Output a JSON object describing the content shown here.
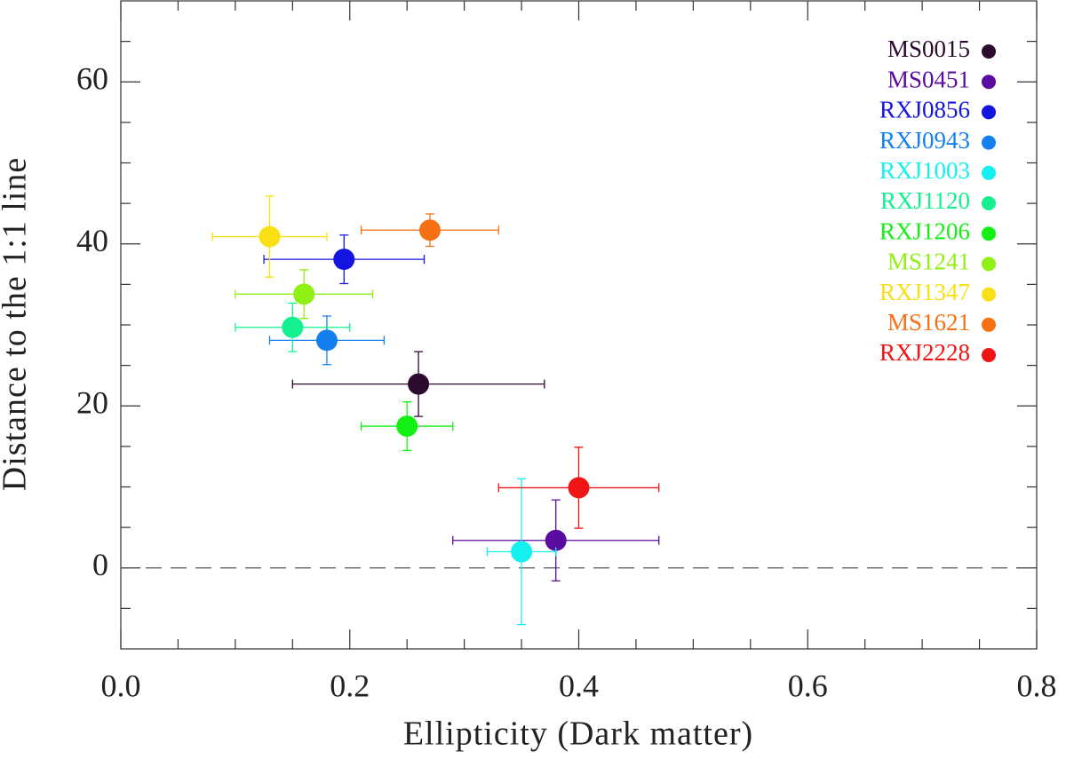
{
  "chart_data": {
    "type": "scatter",
    "xlabel": "Ellipticity (Dark matter)",
    "ylabel": "Distance to the 1:1 line",
    "xlim": [
      0,
      0.8
    ],
    "ylim": [
      -10,
      70
    ],
    "xticks": [
      {
        "value": 0,
        "label": "0.0"
      },
      0.2,
      0.4,
      0.6,
      0.8
    ],
    "yticks": [
      0,
      20,
      40,
      60
    ],
    "xminorticks": [
      0.05,
      0.1,
      0.15,
      0.25,
      0.3,
      0.35,
      0.45,
      0.5,
      0.55,
      0.65,
      0.7,
      0.75
    ],
    "yminorticks": [
      -5,
      5,
      10,
      15,
      25,
      30,
      35,
      45,
      50,
      55,
      65
    ],
    "reference_line": 0,
    "legend": "upper right",
    "series": [
      {
        "name": "MS0015",
        "color": "#2b0a2e",
        "x": [
          0.26
        ],
        "values": [
          22.7
        ],
        "xerr": [
          0.11
        ],
        "yerr": [
          4
        ]
      },
      {
        "name": "MS0451",
        "color": "#5a0ca0",
        "x": [
          0.38
        ],
        "values": [
          3.4
        ],
        "xerr": [
          0.09
        ],
        "yerr": [
          5
        ]
      },
      {
        "name": "RXJ0856",
        "color": "#1414e0",
        "x": [
          0.195
        ],
        "values": [
          38.1
        ],
        "xerr": [
          0.07
        ],
        "yerr": [
          3
        ]
      },
      {
        "name": "RXJ0943",
        "color": "#1480f0",
        "x": [
          0.18
        ],
        "values": [
          28.1
        ],
        "xerr": [
          0.05
        ],
        "yerr": [
          3
        ]
      },
      {
        "name": "RXJ1003",
        "color": "#14f0f0",
        "x": [
          0.35
        ],
        "values": [
          2.0
        ],
        "xerr": [
          0.03
        ],
        "yerr": [
          9
        ]
      },
      {
        "name": "RXJ1120",
        "color": "#14f090",
        "x": [
          0.15
        ],
        "values": [
          29.7
        ],
        "xerr": [
          0.05
        ],
        "yerr": [
          3
        ]
      },
      {
        "name": "RXJ1206",
        "color": "#14f014",
        "x": [
          0.25
        ],
        "values": [
          17.5
        ],
        "xerr": [
          0.04
        ],
        "yerr": [
          3
        ]
      },
      {
        "name": "MS1241",
        "color": "#90f014",
        "x": [
          0.16
        ],
        "values": [
          33.8
        ],
        "xerr": [
          0.06
        ],
        "yerr": [
          3
        ]
      },
      {
        "name": "RXJ1347",
        "color": "#f8e014",
        "x": [
          0.13
        ],
        "values": [
          40.9
        ],
        "xerr": [
          0.05
        ],
        "yerr": [
          5
        ]
      },
      {
        "name": "MS1621",
        "color": "#f87014",
        "x": [
          0.27
        ],
        "values": [
          41.7
        ],
        "xerr": [
          0.06
        ],
        "yerr": [
          2
        ]
      },
      {
        "name": "RXJ2228",
        "color": "#f01414",
        "x": [
          0.4
        ],
        "values": [
          9.9
        ],
        "xerr": [
          0.07
        ],
        "yerr": [
          5
        ]
      }
    ]
  }
}
